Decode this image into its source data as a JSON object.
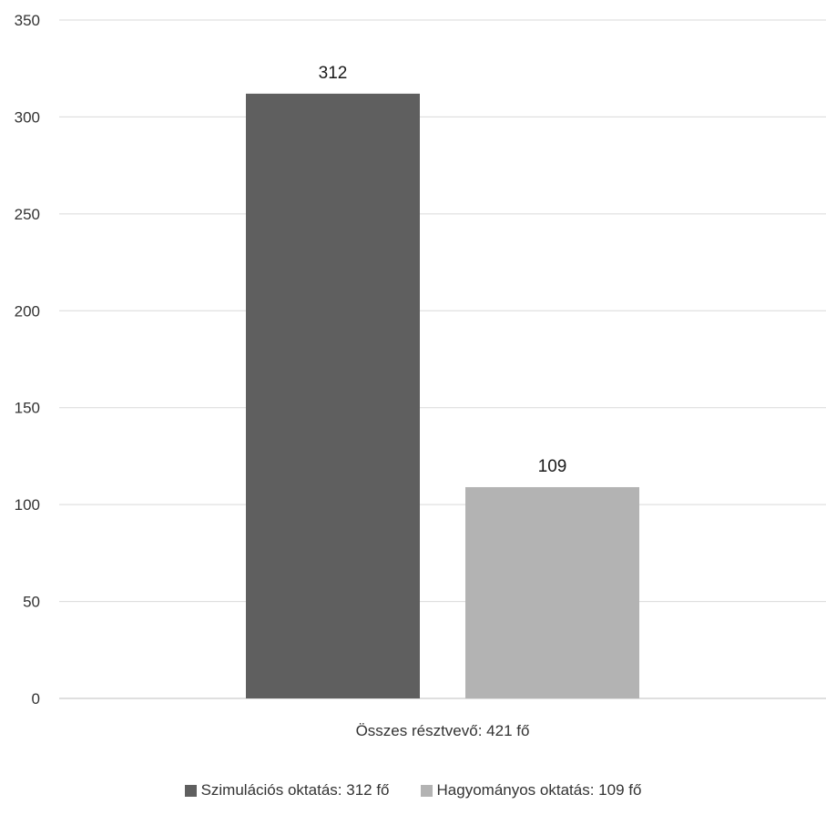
{
  "chart_data": {
    "type": "bar",
    "categories": [
      "Összes résztvevő: 421 fő"
    ],
    "series": [
      {
        "name": "Szimulációs oktatás: 312 fő",
        "values": [
          312
        ],
        "color": "#5f5f5f"
      },
      {
        "name": "Hagyományos oktatás: 109 fő",
        "values": [
          109
        ],
        "color": "#b3b3b3"
      }
    ],
    "ylim": [
      0,
      350
    ],
    "yticks": [
      0,
      50,
      100,
      150,
      200,
      250,
      300,
      350
    ],
    "grid": true,
    "data_labels": true,
    "legend": "bottom"
  }
}
